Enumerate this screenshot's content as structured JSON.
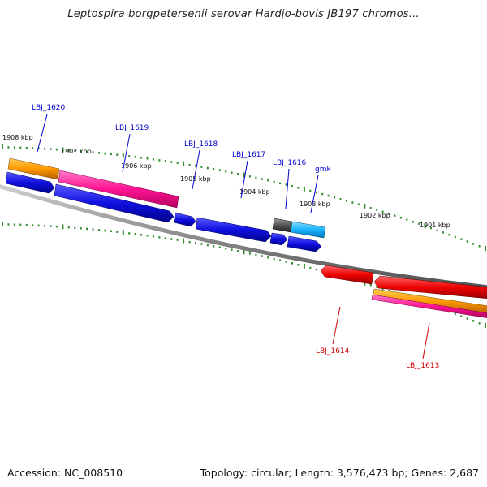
{
  "title": "Leptospira borgpetersenii serovar Hardjo-bovis JB197 chromos...",
  "footer": {
    "accession": "Accession: NC_008510",
    "topology": "Topology: circular; Length: 3,576,473 bp; Genes: 2,687"
  },
  "colors": {
    "backbone": "#8a8a8a",
    "tick": "#2e8b2e",
    "forward_label": "#0000cc",
    "reverse_label": "#cc0000",
    "blue_feature": "#1010e0",
    "pink_feature": "#ff1493",
    "orange_feature": "#ff9900",
    "red_feature": "#ee0000",
    "cyan_feature": "#1ab2ff",
    "gray_feature": "#555555"
  },
  "kbp_labels": [
    "1908 kbp",
    "1907 kbp",
    "1906 kbp",
    "1905 kbp",
    "1904 kbp",
    "1903 kbp",
    "1902 kbp",
    "1901 kbp"
  ],
  "forward_genes": [
    "LBJ_1620",
    "LBJ_1619",
    "LBJ_1618",
    "LBJ_1617",
    "LBJ_1616",
    "gmk"
  ],
  "reverse_genes": [
    "LBJ_1614",
    "LBJ_1613"
  ]
}
